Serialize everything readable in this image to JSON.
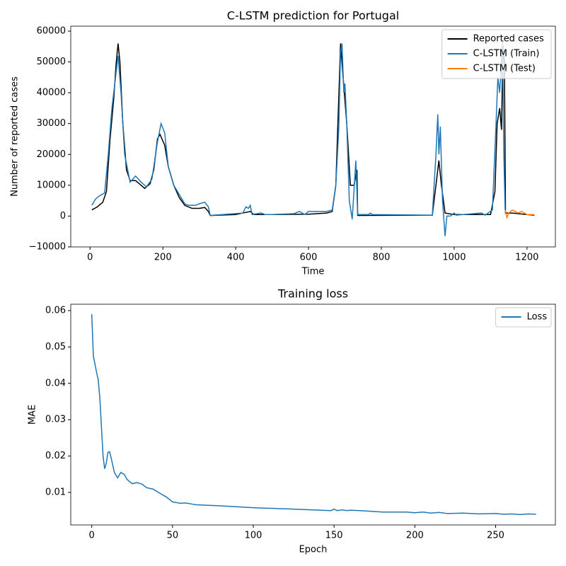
{
  "chart_data": [
    {
      "type": "line",
      "title": "C-LSTM prediction for Portugal",
      "xlabel": "Time",
      "ylabel": "Number of reported cases",
      "xlim": [
        -53,
        1278
      ],
      "ylim": [
        -10000,
        61600
      ],
      "xticks": [
        0,
        200,
        400,
        600,
        800,
        1000,
        1200
      ],
      "yticks": [
        {
          "value": -10000,
          "label": "−10000"
        },
        0,
        10000,
        20000,
        30000,
        40000,
        50000,
        60000
      ],
      "legend": "upper right",
      "grid": false,
      "series": [
        {
          "name": "Reported cases",
          "color": "#000000",
          "x": [
            5,
            20,
            35,
            45,
            55,
            65,
            72,
            77,
            82,
            90,
            100,
            110,
            125,
            140,
            150,
            165,
            175,
            185,
            192,
            205,
            215,
            230,
            245,
            260,
            280,
            300,
            315,
            325,
            330,
            400,
            420,
            440,
            450,
            500,
            600,
            650,
            665,
            675,
            688,
            695,
            705,
            715,
            725,
            733,
            735,
            940,
            950,
            958,
            965,
            975,
            1000,
            1100,
            1112,
            1118,
            1125,
            1130,
            1134,
            1138,
            1141,
            1160,
            1200,
            1220
          ],
          "values": [
            2000,
            3000,
            4500,
            8000,
            25000,
            38000,
            50000,
            56000,
            50000,
            30000,
            15000,
            11500,
            11500,
            10000,
            9000,
            10500,
            15000,
            25000,
            26500,
            23000,
            16000,
            10000,
            6000,
            3500,
            2500,
            2500,
            2800,
            1500,
            200,
            500,
            1000,
            1500,
            500,
            500,
            600,
            1000,
            1500,
            10000,
            56000,
            45000,
            30000,
            10000,
            10000,
            15000,
            200,
            300,
            10000,
            18000,
            10000,
            1000,
            500,
            500,
            8000,
            30000,
            35000,
            28000,
            55000,
            50000,
            1000,
            1000,
            500,
            300
          ]
        },
        {
          "name": "C-LSTM (Train)",
          "color": "#1f77b4",
          "x": [
            5,
            15,
            25,
            40,
            50,
            60,
            70,
            77,
            85,
            95,
            110,
            125,
            140,
            155,
            170,
            185,
            195,
            205,
            215,
            230,
            245,
            260,
            270,
            290,
            300,
            315,
            325,
            330,
            420,
            428,
            435,
            440,
            445,
            470,
            480,
            500,
            560,
            575,
            590,
            600,
            650,
            665,
            675,
            683,
            688,
            692,
            697,
            700,
            705,
            712,
            720,
            730,
            735,
            765,
            770,
            775,
            940,
            950,
            955,
            958,
            962,
            968,
            975,
            980,
            990,
            1000,
            1005,
            1075,
            1085,
            1105,
            1115,
            1120,
            1125,
            1130,
            1133,
            1136,
            1140
          ],
          "values": [
            3500,
            5500,
            6500,
            7500,
            20000,
            35000,
            45000,
            52000,
            40000,
            20000,
            11000,
            13000,
            11000,
            9500,
            12000,
            24000,
            30000,
            27000,
            16000,
            10000,
            7000,
            4000,
            3500,
            3500,
            4000,
            4500,
            3000,
            200,
            1000,
            3000,
            2500,
            3500,
            500,
            1000,
            500,
            500,
            800,
            1500,
            500,
            1500,
            1500,
            2000,
            10000,
            28000,
            53000,
            56000,
            40000,
            43000,
            30000,
            5000,
            -1000,
            18000,
            500,
            500,
            1000,
            500,
            300,
            20000,
            33000,
            20000,
            29000,
            5000,
            -6500,
            0,
            0,
            1000,
            300,
            1000,
            300,
            2000,
            30000,
            45000,
            40000,
            50000,
            57000,
            22000,
            2000
          ]
        },
        {
          "name": "C-LSTM (Test)",
          "color": "#ff7f0e",
          "x": [
            1140,
            1145,
            1150,
            1160,
            1175,
            1185,
            1200,
            1220
          ],
          "values": [
            2000,
            -500,
            1000,
            2000,
            1000,
            1500,
            500,
            500
          ]
        }
      ]
    },
    {
      "type": "line",
      "title": "Training loss",
      "xlabel": "Epoch",
      "ylabel": "MAE",
      "xlim": [
        -13,
        287
      ],
      "ylim": [
        0.00105,
        0.06175
      ],
      "xticks": [
        0,
        50,
        100,
        150,
        200,
        250
      ],
      "yticks": [
        0.01,
        0.02,
        0.03,
        0.04,
        0.05,
        0.06
      ],
      "legend": "upper right",
      "grid": false,
      "series": [
        {
          "name": "Loss",
          "color": "#1f77b4",
          "x": [
            0,
            1,
            3,
            4,
            5,
            6,
            7,
            8,
            9,
            10,
            11,
            12,
            14,
            16,
            18,
            20,
            22,
            25,
            28,
            31,
            34,
            38,
            42,
            46,
            50,
            55,
            58,
            62,
            65,
            80,
            100,
            125,
            148,
            150,
            152,
            155,
            158,
            160,
            170,
            180,
            195,
            200,
            205,
            210,
            215,
            220,
            230,
            240,
            250,
            255,
            260,
            265,
            270,
            275
          ],
          "values": [
            0.059,
            0.0475,
            0.043,
            0.041,
            0.036,
            0.028,
            0.02,
            0.0165,
            0.018,
            0.021,
            0.0212,
            0.0195,
            0.0155,
            0.014,
            0.0155,
            0.015,
            0.0135,
            0.0124,
            0.0127,
            0.0123,
            0.0113,
            0.0109,
            0.0098,
            0.0088,
            0.0074,
            0.007,
            0.0071,
            0.0068,
            0.0066,
            0.0063,
            0.0058,
            0.0054,
            0.005,
            0.0054,
            0.005,
            0.0052,
            0.005,
            0.0051,
            0.0049,
            0.0046,
            0.0046,
            0.0044,
            0.0046,
            0.0043,
            0.0045,
            0.0042,
            0.0043,
            0.0041,
            0.0042,
            0.004,
            0.0041,
            0.0039,
            0.0041,
            0.004
          ]
        }
      ]
    }
  ]
}
